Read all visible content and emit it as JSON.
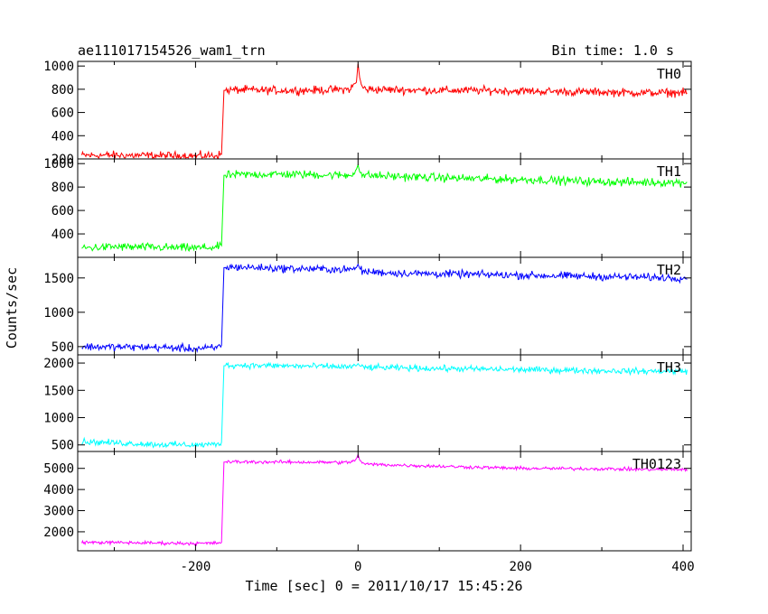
{
  "chart_data": {
    "type": "line",
    "title": "ae111017154526_wam1_trn",
    "subtitle": "Bin time: 1.0 s",
    "xlabel": "Time [sec] 0 = 2011/10/17 15:45:26",
    "ylabel": "Counts/sec",
    "xlim": [
      -345,
      410
    ],
    "xticks": [
      -200,
      0,
      200,
      400
    ],
    "grid": false,
    "panels": [
      {
        "name": "TH0",
        "color": "#ff0000",
        "ylim": [
          200,
          1040
        ],
        "yticks": [
          200,
          400,
          600,
          800,
          1000
        ],
        "series": {
          "x": [
            -340,
            -300,
            -250,
            -200,
            -175,
            -168,
            -165,
            -150,
            -100,
            -50,
            -10,
            -2,
            0,
            2,
            5,
            10,
            50,
            100,
            150,
            200,
            250,
            300,
            350,
            405
          ],
          "y": [
            230,
            232,
            228,
            226,
            230,
            240,
            790,
            795,
            790,
            792,
            800,
            860,
            1020,
            900,
            820,
            800,
            795,
            790,
            790,
            785,
            780,
            775,
            770,
            770
          ]
        },
        "noise": 35
      },
      {
        "name": "TH1",
        "color": "#00ff00",
        "ylim": [
          200,
          1040
        ],
        "yticks": [
          400,
          600,
          800,
          1000
        ],
        "series": {
          "x": [
            -340,
            -300,
            -250,
            -200,
            -175,
            -168,
            -165,
            -150,
            -100,
            -50,
            -10,
            -2,
            0,
            2,
            5,
            10,
            50,
            100,
            150,
            200,
            250,
            300,
            350,
            405
          ],
          "y": [
            280,
            290,
            285,
            280,
            285,
            300,
            900,
            905,
            910,
            905,
            900,
            950,
            990,
            930,
            905,
            900,
            890,
            880,
            870,
            865,
            855,
            845,
            840,
            840
          ]
        },
        "noise": 35
      },
      {
        "name": "TH2",
        "color": "#0000ff",
        "ylim": [
          380,
          1800
        ],
        "yticks": [
          500,
          1000,
          1500
        ],
        "series": {
          "x": [
            -340,
            -300,
            -250,
            -200,
            -175,
            -168,
            -165,
            -150,
            -100,
            -50,
            -10,
            -2,
            0,
            2,
            5,
            10,
            50,
            100,
            150,
            200,
            250,
            300,
            350,
            405
          ],
          "y": [
            500,
            495,
            490,
            470,
            480,
            520,
            1650,
            1660,
            1640,
            1630,
            1620,
            1650,
            1700,
            1640,
            1600,
            1590,
            1570,
            1560,
            1550,
            1540,
            1530,
            1520,
            1510,
            1500
          ]
        },
        "noise": 55
      },
      {
        "name": "TH3",
        "color": "#00ffff",
        "ylim": [
          380,
          2150
        ],
        "yticks": [
          500,
          1000,
          1500,
          2000
        ],
        "series": {
          "x": [
            -340,
            -300,
            -250,
            -200,
            -175,
            -168,
            -165,
            -150,
            -100,
            -50,
            -10,
            -2,
            0,
            2,
            5,
            10,
            50,
            100,
            150,
            200,
            250,
            300,
            350,
            405
          ],
          "y": [
            560,
            540,
            510,
            500,
            510,
            550,
            1950,
            1960,
            1950,
            1940,
            1930,
            1950,
            1990,
            1950,
            1930,
            1920,
            1910,
            1900,
            1890,
            1880,
            1870,
            1860,
            1850,
            1850
          ]
        },
        "noise": 55
      },
      {
        "name": "TH0123",
        "color": "#ff00ff",
        "ylim": [
          1100,
          5800
        ],
        "yticks": [
          2000,
          3000,
          4000,
          5000
        ],
        "series": {
          "x": [
            -340,
            -300,
            -250,
            -200,
            -175,
            -168,
            -165,
            -150,
            -100,
            -50,
            -10,
            -2,
            0,
            2,
            5,
            10,
            50,
            100,
            150,
            200,
            250,
            300,
            350,
            405
          ],
          "y": [
            1500,
            1490,
            1470,
            1450,
            1460,
            1500,
            5300,
            5310,
            5300,
            5290,
            5280,
            5450,
            5650,
            5400,
            5250,
            5200,
            5150,
            5100,
            5050,
            5000,
            4990,
            4980,
            4950,
            4950
          ]
        },
        "noise": 80
      }
    ]
  }
}
